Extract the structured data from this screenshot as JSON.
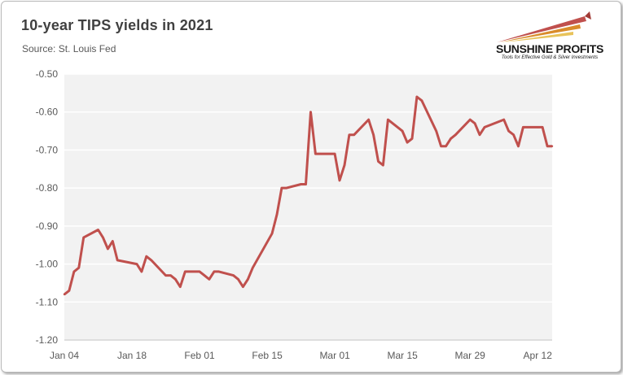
{
  "header": {
    "title": "10-year TIPS yields in 2021",
    "subtitle": "Source: St. Louis Fed"
  },
  "logo": {
    "name": "SUNSHINE PROFITS",
    "tagline": "Tools for Effective Gold & Silver Investments"
  },
  "colors": {
    "series": "#c0504d",
    "plot_bg": "#f2f2f2",
    "grid": "#ffffff",
    "axis_text": "#595959",
    "logo_accent": "#c0504d"
  },
  "chart_data": {
    "type": "line",
    "title": "10-year TIPS yields in 2021",
    "xlabel": "",
    "ylabel": "",
    "ylim": [
      -1.2,
      -0.5
    ],
    "yticks": [
      -0.5,
      -0.6,
      -0.7,
      -0.8,
      -0.9,
      -1.0,
      -1.1,
      -1.2
    ],
    "ytick_labels": [
      "-0.50",
      "-0.60",
      "-0.70",
      "-0.80",
      "-0.90",
      "-1.00",
      "-1.10",
      "-1.20"
    ],
    "xlim": [
      "2021-01-04",
      "2021-04-15"
    ],
    "xticks": [
      "2021-01-04",
      "2021-01-18",
      "2021-02-01",
      "2021-02-15",
      "2021-03-01",
      "2021-03-15",
      "2021-03-29",
      "2021-04-12"
    ],
    "xtick_labels": [
      "Jan 04",
      "Jan 18",
      "Feb 01",
      "Feb 15",
      "Mar 01",
      "Mar 15",
      "Mar 29",
      "Apr 12"
    ],
    "grid": true,
    "series": [
      {
        "x": [
          "2021-01-04",
          "2021-01-05",
          "2021-01-06",
          "2021-01-07",
          "2021-01-08",
          "2021-01-11",
          "2021-01-12",
          "2021-01-13",
          "2021-01-14",
          "2021-01-15",
          "2021-01-19",
          "2021-01-20",
          "2021-01-21",
          "2021-01-22",
          "2021-01-25",
          "2021-01-26",
          "2021-01-27",
          "2021-01-28",
          "2021-01-29",
          "2021-02-01",
          "2021-02-02",
          "2021-02-03",
          "2021-02-04",
          "2021-02-05",
          "2021-02-08",
          "2021-02-09",
          "2021-02-10",
          "2021-02-11",
          "2021-02-12",
          "2021-02-16",
          "2021-02-17",
          "2021-02-18",
          "2021-02-19",
          "2021-02-22",
          "2021-02-23",
          "2021-02-24",
          "2021-02-25",
          "2021-02-26",
          "2021-03-01",
          "2021-03-02",
          "2021-03-03",
          "2021-03-04",
          "2021-03-05",
          "2021-03-08",
          "2021-03-09",
          "2021-03-10",
          "2021-03-11",
          "2021-03-12",
          "2021-03-15",
          "2021-03-16",
          "2021-03-17",
          "2021-03-18",
          "2021-03-19",
          "2021-03-22",
          "2021-03-23",
          "2021-03-24",
          "2021-03-25",
          "2021-03-26",
          "2021-03-29",
          "2021-03-30",
          "2021-03-31",
          "2021-04-01",
          "2021-04-05",
          "2021-04-06",
          "2021-04-07",
          "2021-04-08",
          "2021-04-09",
          "2021-04-12",
          "2021-04-13",
          "2021-04-14",
          "2021-04-15"
        ],
        "y": [
          -1.08,
          -1.07,
          -1.02,
          -1.01,
          -0.93,
          -0.91,
          -0.93,
          -0.96,
          -0.94,
          -0.99,
          -1.0,
          -1.02,
          -0.98,
          -0.99,
          -1.03,
          -1.03,
          -1.04,
          -1.06,
          -1.02,
          -1.02,
          -1.03,
          -1.04,
          -1.02,
          -1.02,
          -1.03,
          -1.04,
          -1.06,
          -1.04,
          -1.01,
          -0.92,
          -0.87,
          -0.8,
          -0.8,
          -0.79,
          -0.79,
          -0.6,
          -0.71,
          -0.71,
          -0.71,
          -0.78,
          -0.74,
          -0.66,
          -0.66,
          -0.62,
          -0.66,
          -0.73,
          -0.74,
          -0.62,
          -0.65,
          -0.68,
          -0.67,
          -0.56,
          -0.57,
          -0.65,
          -0.69,
          -0.69,
          -0.67,
          -0.66,
          -0.62,
          -0.63,
          -0.66,
          -0.64,
          -0.62,
          -0.65,
          -0.66,
          -0.69,
          -0.64,
          -0.64,
          -0.64,
          -0.69,
          -0.69
        ]
      }
    ]
  }
}
